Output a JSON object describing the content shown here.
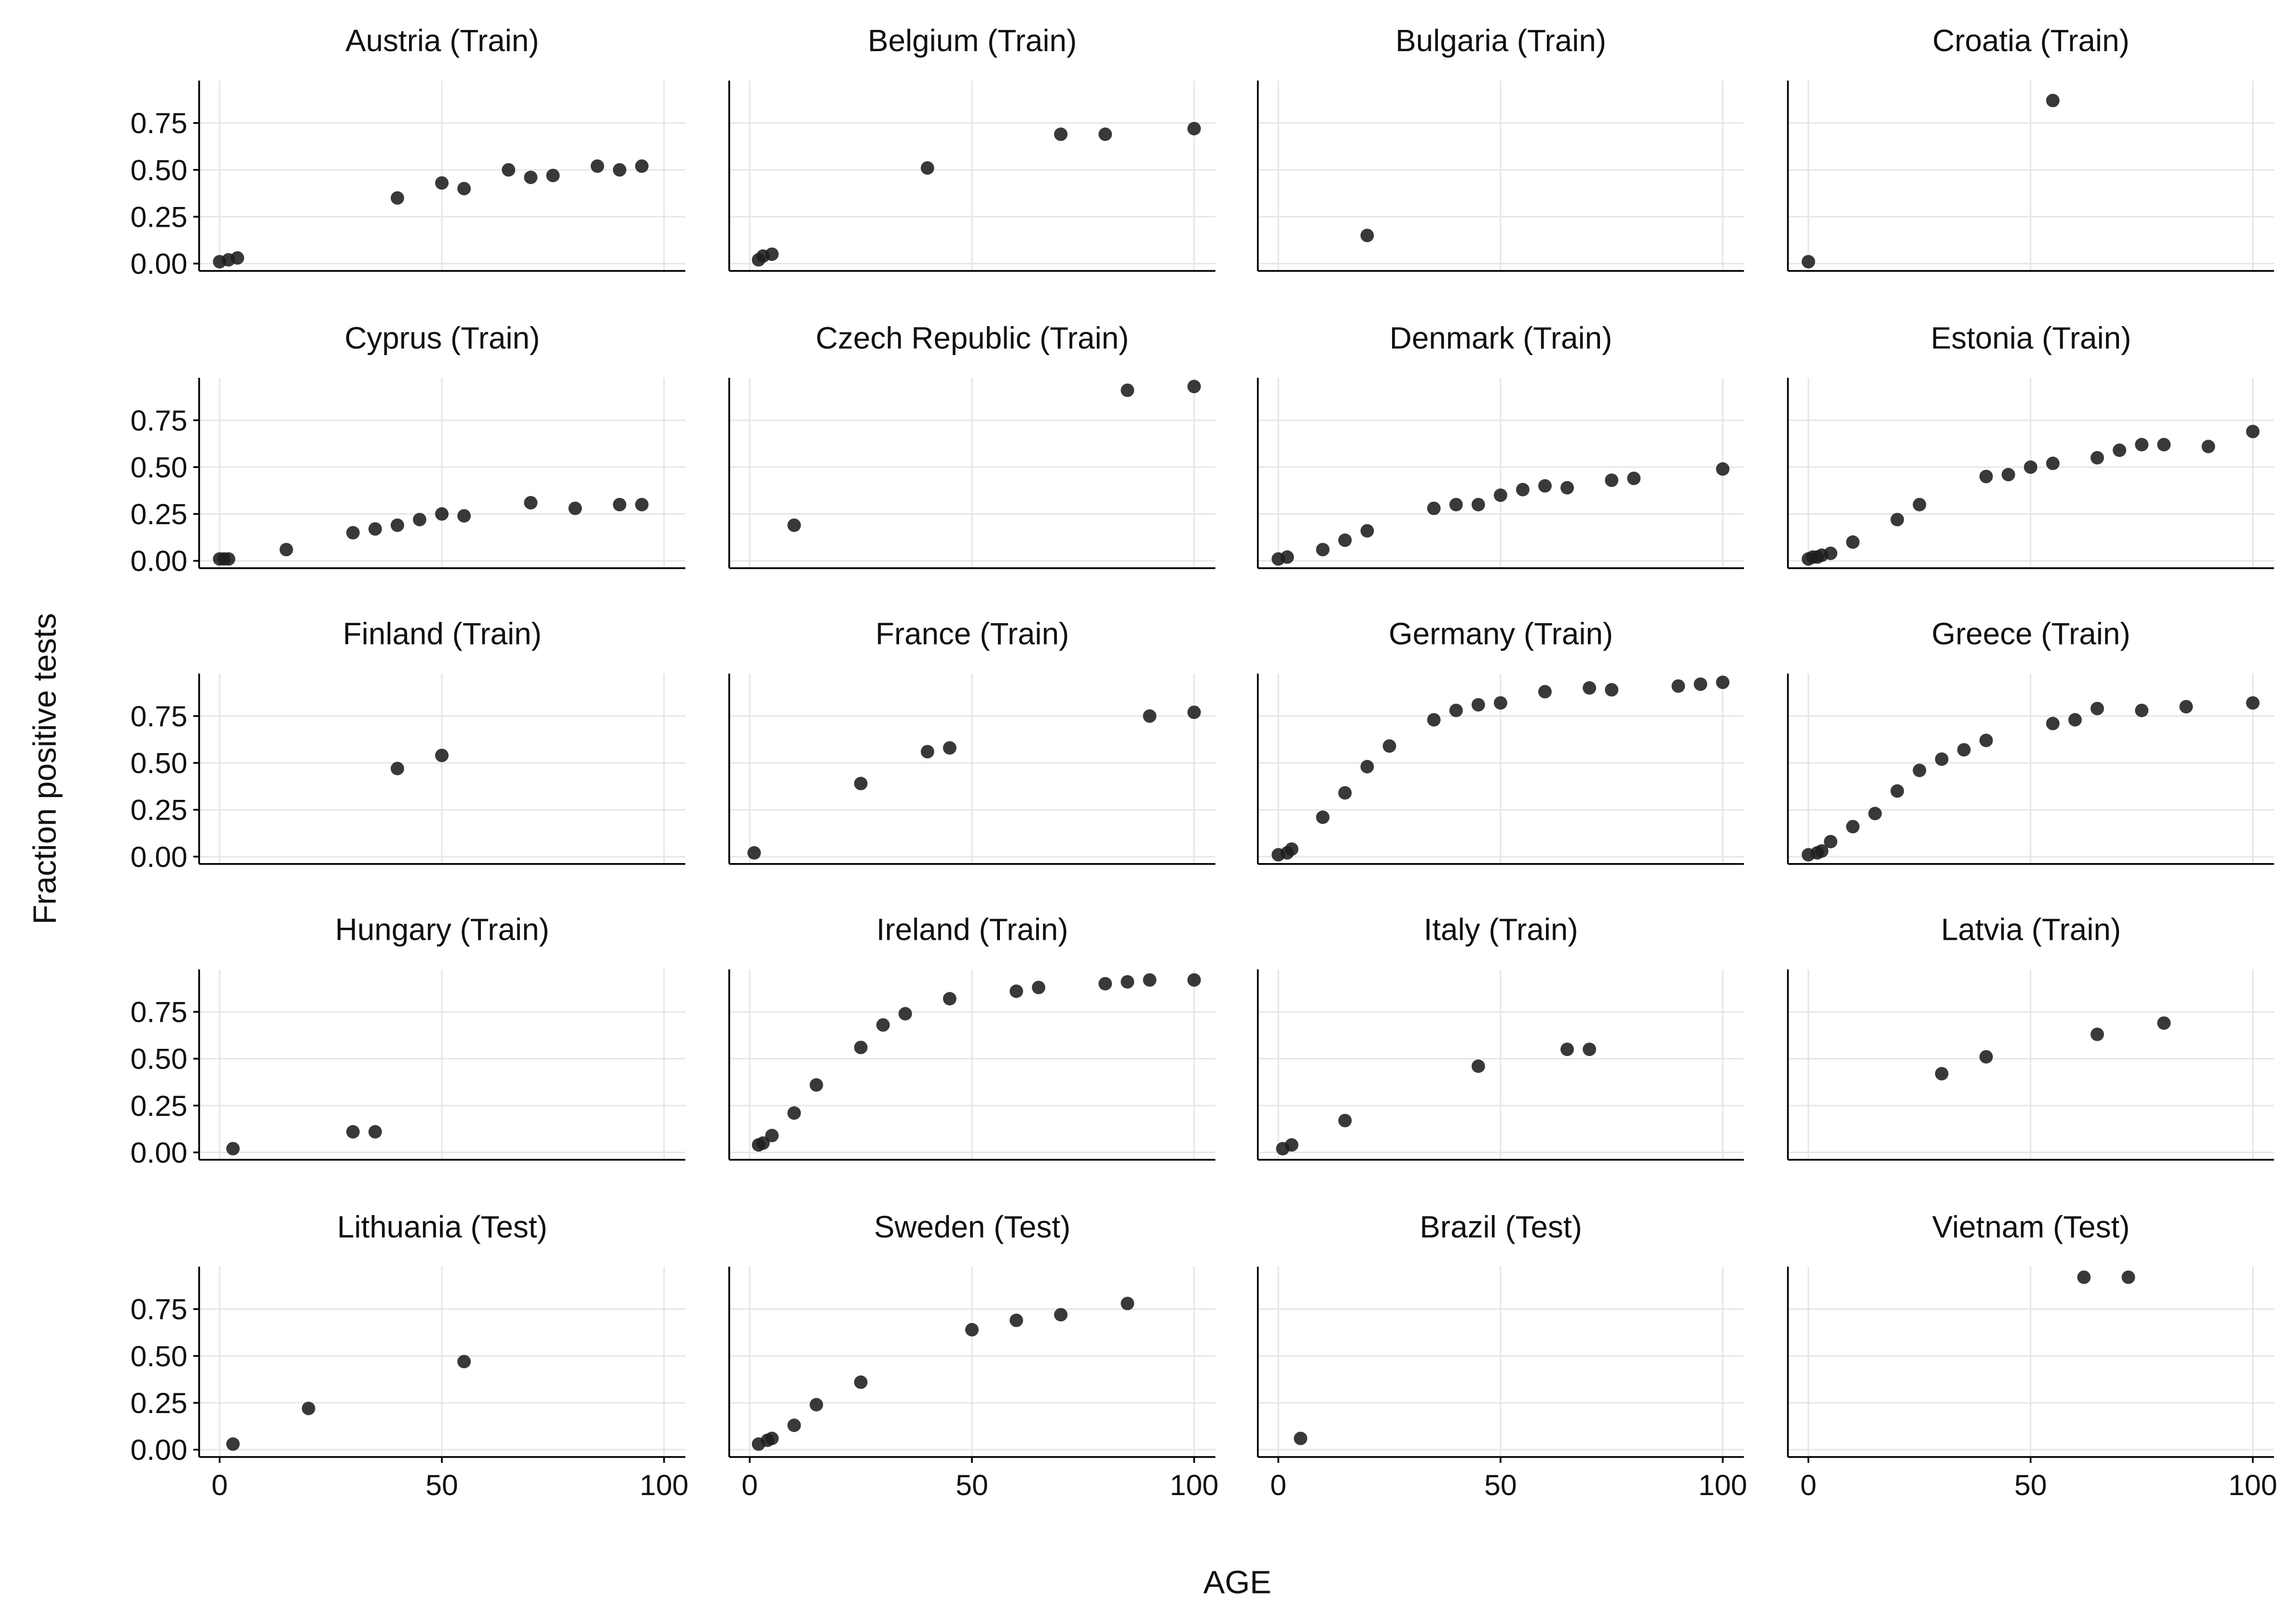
{
  "chart_data": {
    "type": "scatter",
    "xlabel": "AGE",
    "ylabel": "Fraction positive tests",
    "xlim": [
      0,
      100
    ],
    "ylim": [
      0,
      0.95
    ],
    "x_ticks": [
      "0",
      "50",
      "100"
    ],
    "x_tick_values": [
      0,
      50,
      100
    ],
    "y_ticks": [
      "0.00",
      "0.25",
      "0.50",
      "0.75"
    ],
    "y_tick_values": [
      0,
      0.25,
      0.5,
      0.75
    ],
    "grid": true,
    "panels": [
      {
        "title": "Austria (Train)",
        "points": [
          [
            0,
            0.01
          ],
          [
            2,
            0.02
          ],
          [
            4,
            0.03
          ],
          [
            40,
            0.35
          ],
          [
            50,
            0.43
          ],
          [
            55,
            0.4
          ],
          [
            65,
            0.5
          ],
          [
            70,
            0.46
          ],
          [
            75,
            0.47
          ],
          [
            85,
            0.52
          ],
          [
            90,
            0.5
          ],
          [
            95,
            0.52
          ]
        ]
      },
      {
        "title": "Belgium (Train)",
        "points": [
          [
            2,
            0.02
          ],
          [
            3,
            0.04
          ],
          [
            5,
            0.05
          ],
          [
            40,
            0.51
          ],
          [
            70,
            0.69
          ],
          [
            80,
            0.69
          ],
          [
            100,
            0.72
          ]
        ]
      },
      {
        "title": "Bulgaria (Train)",
        "points": [
          [
            20,
            0.15
          ]
        ]
      },
      {
        "title": "Croatia (Train)",
        "points": [
          [
            0,
            0.01
          ],
          [
            55,
            0.87
          ]
        ]
      },
      {
        "title": "Cyprus (Train)",
        "points": [
          [
            0,
            0.01
          ],
          [
            1,
            0.01
          ],
          [
            2,
            0.01
          ],
          [
            15,
            0.06
          ],
          [
            30,
            0.15
          ],
          [
            35,
            0.17
          ],
          [
            40,
            0.19
          ],
          [
            45,
            0.22
          ],
          [
            50,
            0.25
          ],
          [
            55,
            0.24
          ],
          [
            70,
            0.31
          ],
          [
            80,
            0.28
          ],
          [
            90,
            0.3
          ],
          [
            95,
            0.3
          ]
        ]
      },
      {
        "title": "Czech Republic (Train)",
        "points": [
          [
            10,
            0.19
          ],
          [
            85,
            0.91
          ],
          [
            100,
            0.93
          ]
        ]
      },
      {
        "title": "Denmark (Train)",
        "points": [
          [
            0,
            0.01
          ],
          [
            2,
            0.02
          ],
          [
            10,
            0.06
          ],
          [
            15,
            0.11
          ],
          [
            20,
            0.16
          ],
          [
            35,
            0.28
          ],
          [
            40,
            0.3
          ],
          [
            45,
            0.3
          ],
          [
            50,
            0.35
          ],
          [
            55,
            0.38
          ],
          [
            60,
            0.4
          ],
          [
            65,
            0.39
          ],
          [
            75,
            0.43
          ],
          [
            80,
            0.44
          ],
          [
            100,
            0.49
          ]
        ]
      },
      {
        "title": "Estonia (Train)",
        "points": [
          [
            0,
            0.01
          ],
          [
            1,
            0.02
          ],
          [
            2,
            0.02
          ],
          [
            3,
            0.03
          ],
          [
            5,
            0.04
          ],
          [
            10,
            0.1
          ],
          [
            20,
            0.22
          ],
          [
            25,
            0.3
          ],
          [
            40,
            0.45
          ],
          [
            45,
            0.46
          ],
          [
            50,
            0.5
          ],
          [
            55,
            0.52
          ],
          [
            65,
            0.55
          ],
          [
            70,
            0.59
          ],
          [
            75,
            0.62
          ],
          [
            80,
            0.62
          ],
          [
            90,
            0.61
          ],
          [
            100,
            0.69
          ]
        ]
      },
      {
        "title": "Finland (Train)",
        "points": [
          [
            40,
            0.47
          ],
          [
            50,
            0.54
          ]
        ]
      },
      {
        "title": "France (Train)",
        "points": [
          [
            1,
            0.02
          ],
          [
            25,
            0.39
          ],
          [
            40,
            0.56
          ],
          [
            45,
            0.58
          ],
          [
            90,
            0.75
          ],
          [
            100,
            0.77
          ]
        ]
      },
      {
        "title": "Germany (Train)",
        "points": [
          [
            0,
            0.01
          ],
          [
            2,
            0.02
          ],
          [
            3,
            0.04
          ],
          [
            10,
            0.21
          ],
          [
            15,
            0.34
          ],
          [
            20,
            0.48
          ],
          [
            25,
            0.59
          ],
          [
            35,
            0.73
          ],
          [
            40,
            0.78
          ],
          [
            45,
            0.81
          ],
          [
            50,
            0.82
          ],
          [
            60,
            0.88
          ],
          [
            70,
            0.9
          ],
          [
            75,
            0.89
          ],
          [
            90,
            0.91
          ],
          [
            95,
            0.92
          ],
          [
            100,
            0.93
          ]
        ]
      },
      {
        "title": "Greece (Train)",
        "points": [
          [
            0,
            0.01
          ],
          [
            2,
            0.02
          ],
          [
            3,
            0.03
          ],
          [
            5,
            0.08
          ],
          [
            10,
            0.16
          ],
          [
            15,
            0.23
          ],
          [
            20,
            0.35
          ],
          [
            25,
            0.46
          ],
          [
            30,
            0.52
          ],
          [
            35,
            0.57
          ],
          [
            40,
            0.62
          ],
          [
            55,
            0.71
          ],
          [
            60,
            0.73
          ],
          [
            65,
            0.79
          ],
          [
            75,
            0.78
          ],
          [
            85,
            0.8
          ],
          [
            100,
            0.82
          ]
        ]
      },
      {
        "title": "Hungary (Train)",
        "points": [
          [
            3,
            0.02
          ],
          [
            30,
            0.11
          ],
          [
            35,
            0.11
          ]
        ]
      },
      {
        "title": "Ireland (Train)",
        "points": [
          [
            2,
            0.04
          ],
          [
            3,
            0.05
          ],
          [
            5,
            0.09
          ],
          [
            10,
            0.21
          ],
          [
            15,
            0.36
          ],
          [
            25,
            0.56
          ],
          [
            30,
            0.68
          ],
          [
            35,
            0.74
          ],
          [
            45,
            0.82
          ],
          [
            60,
            0.86
          ],
          [
            65,
            0.88
          ],
          [
            80,
            0.9
          ],
          [
            85,
            0.91
          ],
          [
            90,
            0.92
          ],
          [
            100,
            0.92
          ]
        ]
      },
      {
        "title": "Italy (Train)",
        "points": [
          [
            1,
            0.02
          ],
          [
            3,
            0.04
          ],
          [
            15,
            0.17
          ],
          [
            45,
            0.46
          ],
          [
            65,
            0.55
          ],
          [
            70,
            0.55
          ]
        ]
      },
      {
        "title": "Latvia (Train)",
        "points": [
          [
            30,
            0.42
          ],
          [
            40,
            0.51
          ],
          [
            65,
            0.63
          ],
          [
            80,
            0.69
          ]
        ]
      },
      {
        "title": "Lithuania (Test)",
        "points": [
          [
            3,
            0.03
          ],
          [
            20,
            0.22
          ],
          [
            55,
            0.47
          ]
        ]
      },
      {
        "title": "Sweden (Test)",
        "points": [
          [
            2,
            0.03
          ],
          [
            4,
            0.05
          ],
          [
            5,
            0.06
          ],
          [
            10,
            0.13
          ],
          [
            15,
            0.24
          ],
          [
            25,
            0.36
          ],
          [
            50,
            0.64
          ],
          [
            60,
            0.69
          ],
          [
            70,
            0.72
          ],
          [
            85,
            0.78
          ]
        ]
      },
      {
        "title": "Brazil (Test)",
        "points": [
          [
            5,
            0.06
          ]
        ]
      },
      {
        "title": "Vietnam (Test)",
        "points": [
          [
            62,
            0.92
          ],
          [
            72,
            0.92
          ]
        ]
      }
    ],
    "point_color": "#1e1e1e"
  }
}
